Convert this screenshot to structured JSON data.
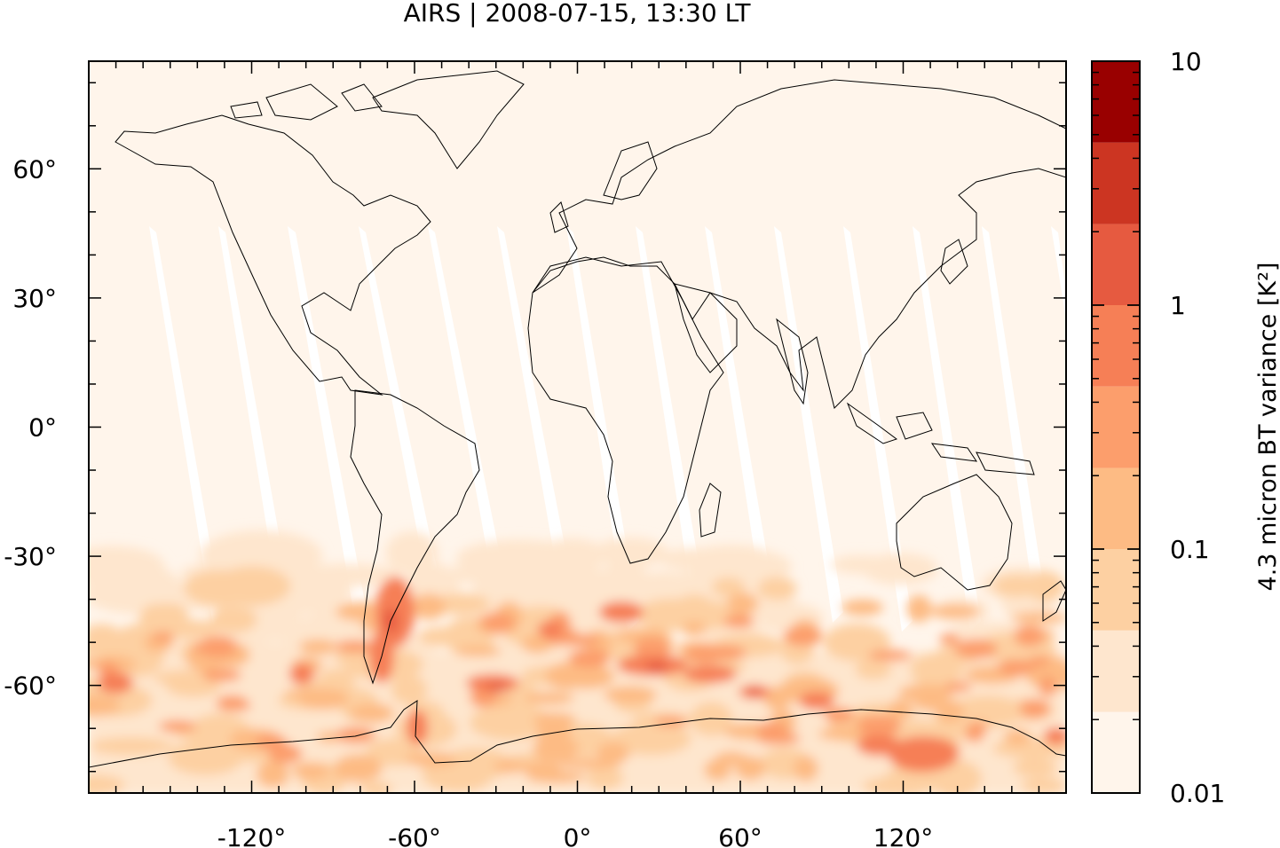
{
  "title": "AIRS | 2008-07-15, 13:30 LT",
  "map": {
    "lon_range": [
      -180,
      180
    ],
    "lat_range": [
      -85,
      85
    ],
    "x_ticks": [
      {
        "value": -120,
        "label": "-120°"
      },
      {
        "value": -60,
        "label": "-60°"
      },
      {
        "value": 0,
        "label": "0°"
      },
      {
        "value": 60,
        "label": "60°"
      },
      {
        "value": 120,
        "label": "120°"
      }
    ],
    "y_ticks": [
      {
        "value": 60,
        "label": "60°"
      },
      {
        "value": 30,
        "label": "30°"
      },
      {
        "value": 0,
        "label": "0°"
      },
      {
        "value": -30,
        "label": "-30°"
      },
      {
        "value": -60,
        "label": "-60°"
      }
    ],
    "background_color": "#fff5eb",
    "coastline_color": "#000000"
  },
  "colorbar": {
    "label": "4.3 micron BT variance [K²]",
    "scale": "log",
    "range": [
      0.01,
      10
    ],
    "tick_labels": [
      {
        "value": 10,
        "label": "10"
      },
      {
        "value": 1,
        "label": "1"
      },
      {
        "value": 0.1,
        "label": "0.1"
      },
      {
        "value": 0.01,
        "label": "0.01"
      }
    ],
    "levels": [
      {
        "min": 0.01,
        "max": 0.0215,
        "color": "#fff5eb"
      },
      {
        "min": 0.0215,
        "max": 0.0464,
        "color": "#fee6ce"
      },
      {
        "min": 0.0464,
        "max": 0.1,
        "color": "#fdd0a2"
      },
      {
        "min": 0.1,
        "max": 0.215,
        "color": "#fdbb84"
      },
      {
        "min": 0.215,
        "max": 0.464,
        "color": "#fc9e6c"
      },
      {
        "min": 0.464,
        "max": 1,
        "color": "#f67f56"
      },
      {
        "min": 1,
        "max": 2.15,
        "color": "#e65a40"
      },
      {
        "min": 2.15,
        "max": 4.64,
        "color": "#cc3522"
      },
      {
        "min": 4.64,
        "max": 10,
        "color": "#990000"
      }
    ]
  }
}
